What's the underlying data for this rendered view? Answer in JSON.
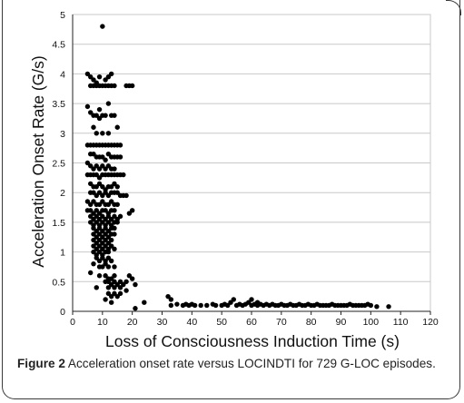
{
  "figure": {
    "label": "Figure 2",
    "caption_text": "Acceleration onset rate versus LOCINDTI for 729 G-LOC episodes."
  },
  "chart_data": {
    "type": "scatter",
    "title": "",
    "xlabel": "Loss of Consciousness Induction Time (s)",
    "ylabel": "Acceleration Onset Rate (G/s)",
    "xlim": [
      0,
      120
    ],
    "ylim": [
      0,
      5
    ],
    "x_ticks": [
      "0",
      "10",
      "20",
      "30",
      "40",
      "50",
      "60",
      "70",
      "80",
      "90",
      "100",
      "110",
      "120"
    ],
    "y_ticks": [
      "0",
      "0.5",
      "1",
      "1.5",
      "2",
      "2.5",
      "3",
      "3.5",
      "4",
      "4.5",
      "5"
    ],
    "grid": "horizontal",
    "legend": "none",
    "marker_color": "#000000",
    "points": [
      [
        10,
        4.8
      ],
      [
        5,
        4.0
      ],
      [
        6,
        3.95
      ],
      [
        7,
        3.9
      ],
      [
        8,
        3.85
      ],
      [
        9,
        3.95
      ],
      [
        11,
        3.9
      ],
      [
        12,
        3.95
      ],
      [
        13,
        4.0
      ],
      [
        6,
        3.8
      ],
      [
        7,
        3.8
      ],
      [
        8,
        3.8
      ],
      [
        9,
        3.8
      ],
      [
        10,
        3.8
      ],
      [
        11,
        3.8
      ],
      [
        12,
        3.8
      ],
      [
        13,
        3.8
      ],
      [
        14,
        3.8
      ],
      [
        18,
        3.8
      ],
      [
        19,
        3.8
      ],
      [
        20,
        3.8
      ],
      [
        5,
        3.45
      ],
      [
        6,
        3.35
      ],
      [
        7,
        3.3
      ],
      [
        8,
        3.3
      ],
      [
        9,
        3.25
      ],
      [
        7,
        3.1
      ],
      [
        8,
        3.0
      ],
      [
        9,
        3.4
      ],
      [
        10,
        3.3
      ],
      [
        11,
        3.3
      ],
      [
        12,
        3.5
      ],
      [
        13,
        3.3
      ],
      [
        14,
        3.3
      ],
      [
        15,
        3.1
      ],
      [
        10,
        3.0
      ],
      [
        12,
        3.0
      ],
      [
        5,
        2.8
      ],
      [
        6,
        2.8
      ],
      [
        7,
        2.8
      ],
      [
        8,
        2.8
      ],
      [
        9,
        2.8
      ],
      [
        10,
        2.8
      ],
      [
        11,
        2.8
      ],
      [
        12,
        2.8
      ],
      [
        13,
        2.8
      ],
      [
        14,
        2.8
      ],
      [
        15,
        2.8
      ],
      [
        16,
        2.8
      ],
      [
        6,
        2.65
      ],
      [
        7,
        2.65
      ],
      [
        8,
        2.6
      ],
      [
        9,
        2.6
      ],
      [
        10,
        2.6
      ],
      [
        11,
        2.55
      ],
      [
        12,
        2.65
      ],
      [
        13,
        2.6
      ],
      [
        14,
        2.6
      ],
      [
        15,
        2.6
      ],
      [
        16,
        2.6
      ],
      [
        5,
        2.5
      ],
      [
        6,
        2.45
      ],
      [
        7,
        2.4
      ],
      [
        8,
        2.45
      ],
      [
        9,
        2.4
      ],
      [
        10,
        2.45
      ],
      [
        11,
        2.4
      ],
      [
        12,
        2.45
      ],
      [
        13,
        2.4
      ],
      [
        14,
        2.4
      ],
      [
        5,
        2.3
      ],
      [
        6,
        2.3
      ],
      [
        7,
        2.3
      ],
      [
        8,
        2.3
      ],
      [
        9,
        2.25
      ],
      [
        10,
        2.3
      ],
      [
        11,
        2.3
      ],
      [
        12,
        2.3
      ],
      [
        13,
        2.3
      ],
      [
        14,
        2.3
      ],
      [
        15,
        2.3
      ],
      [
        16,
        2.3
      ],
      [
        17,
        2.3
      ],
      [
        6,
        2.15
      ],
      [
        7,
        2.1
      ],
      [
        8,
        2.1
      ],
      [
        9,
        2.15
      ],
      [
        10,
        2.1
      ],
      [
        11,
        2.05
      ],
      [
        12,
        2.1
      ],
      [
        13,
        2.1
      ],
      [
        14,
        2.15
      ],
      [
        15,
        2.1
      ],
      [
        6,
        2.0
      ],
      [
        7,
        2.0
      ],
      [
        8,
        1.95
      ],
      [
        9,
        2.0
      ],
      [
        10,
        1.95
      ],
      [
        11,
        2.0
      ],
      [
        12,
        1.95
      ],
      [
        13,
        2.0
      ],
      [
        14,
        2.0
      ],
      [
        15,
        2.0
      ],
      [
        16,
        1.95
      ],
      [
        17,
        1.95
      ],
      [
        18,
        1.95
      ],
      [
        5,
        1.85
      ],
      [
        6,
        1.8
      ],
      [
        7,
        1.85
      ],
      [
        8,
        1.8
      ],
      [
        9,
        1.8
      ],
      [
        10,
        1.85
      ],
      [
        11,
        1.8
      ],
      [
        12,
        1.8
      ],
      [
        13,
        1.85
      ],
      [
        14,
        1.8
      ],
      [
        15,
        1.8
      ],
      [
        5,
        1.7
      ],
      [
        6,
        1.7
      ],
      [
        7,
        1.65
      ],
      [
        8,
        1.7
      ],
      [
        9,
        1.65
      ],
      [
        10,
        1.7
      ],
      [
        11,
        1.7
      ],
      [
        12,
        1.65
      ],
      [
        13,
        1.7
      ],
      [
        14,
        1.7
      ],
      [
        20,
        1.7
      ],
      [
        19,
        1.65
      ],
      [
        6,
        1.6
      ],
      [
        7,
        1.55
      ],
      [
        8,
        1.6
      ],
      [
        9,
        1.55
      ],
      [
        10,
        1.6
      ],
      [
        11,
        1.55
      ],
      [
        12,
        1.6
      ],
      [
        13,
        1.55
      ],
      [
        14,
        1.6
      ],
      [
        15,
        1.55
      ],
      [
        16,
        1.6
      ],
      [
        6,
        1.5
      ],
      [
        7,
        1.45
      ],
      [
        8,
        1.5
      ],
      [
        9,
        1.45
      ],
      [
        10,
        1.5
      ],
      [
        11,
        1.45
      ],
      [
        12,
        1.5
      ],
      [
        13,
        1.45
      ],
      [
        14,
        1.5
      ],
      [
        15,
        1.5
      ],
      [
        7,
        1.4
      ],
      [
        8,
        1.35
      ],
      [
        9,
        1.4
      ],
      [
        10,
        1.35
      ],
      [
        11,
        1.4
      ],
      [
        12,
        1.35
      ],
      [
        13,
        1.4
      ],
      [
        14,
        1.4
      ],
      [
        7,
        1.3
      ],
      [
        8,
        1.25
      ],
      [
        9,
        1.3
      ],
      [
        10,
        1.25
      ],
      [
        11,
        1.3
      ],
      [
        12,
        1.25
      ],
      [
        13,
        1.3
      ],
      [
        14,
        1.3
      ],
      [
        7,
        1.2
      ],
      [
        8,
        1.15
      ],
      [
        9,
        1.2
      ],
      [
        10,
        1.15
      ],
      [
        11,
        1.2
      ],
      [
        12,
        1.15
      ],
      [
        13,
        1.2
      ],
      [
        7,
        1.1
      ],
      [
        8,
        1.05
      ],
      [
        9,
        1.1
      ],
      [
        10,
        1.05
      ],
      [
        11,
        1.1
      ],
      [
        12,
        1.05
      ],
      [
        13,
        1.1
      ],
      [
        14,
        1.05
      ],
      [
        7,
        1.0
      ],
      [
        8,
        0.95
      ],
      [
        9,
        1.0
      ],
      [
        10,
        0.95
      ],
      [
        11,
        1.0
      ],
      [
        12,
        1.0
      ],
      [
        8,
        0.9
      ],
      [
        9,
        0.85
      ],
      [
        10,
        0.9
      ],
      [
        11,
        0.85
      ],
      [
        12,
        0.9
      ],
      [
        13,
        0.85
      ],
      [
        9,
        0.75
      ],
      [
        10,
        0.75
      ],
      [
        11,
        0.8
      ],
      [
        12,
        0.75
      ],
      [
        14,
        0.75
      ],
      [
        7,
        0.8
      ],
      [
        6,
        0.65
      ],
      [
        9,
        0.6
      ],
      [
        11,
        0.6
      ],
      [
        12,
        0.55
      ],
      [
        13,
        0.55
      ],
      [
        14,
        0.6
      ],
      [
        19,
        0.6
      ],
      [
        20,
        0.55
      ],
      [
        11,
        0.5
      ],
      [
        12,
        0.5
      ],
      [
        13,
        0.45
      ],
      [
        14,
        0.5
      ],
      [
        15,
        0.45
      ],
      [
        16,
        0.5
      ],
      [
        17,
        0.45
      ],
      [
        18,
        0.5
      ],
      [
        21,
        0.45
      ],
      [
        8,
        0.4
      ],
      [
        12,
        0.4
      ],
      [
        14,
        0.4
      ],
      [
        16,
        0.4
      ],
      [
        18,
        0.35
      ],
      [
        12,
        0.3
      ],
      [
        13,
        0.25
      ],
      [
        14,
        0.3
      ],
      [
        16,
        0.3
      ],
      [
        11,
        0.2
      ],
      [
        13,
        0.15
      ],
      [
        15,
        0.25
      ],
      [
        21,
        0.05
      ],
      [
        24,
        0.15
      ],
      [
        32,
        0.25
      ],
      [
        33,
        0.2
      ],
      [
        33,
        0.1
      ],
      [
        35,
        0.12
      ],
      [
        37,
        0.1
      ],
      [
        38,
        0.12
      ],
      [
        39,
        0.1
      ],
      [
        40,
        0.12
      ],
      [
        41,
        0.1
      ],
      [
        43,
        0.1
      ],
      [
        45,
        0.1
      ],
      [
        47,
        0.12
      ],
      [
        48,
        0.1
      ],
      [
        50,
        0.1
      ],
      [
        51,
        0.12
      ],
      [
        52,
        0.1
      ],
      [
        53,
        0.15
      ],
      [
        54,
        0.2
      ],
      [
        55,
        0.1
      ],
      [
        56,
        0.12
      ],
      [
        57,
        0.1
      ],
      [
        58,
        0.12
      ],
      [
        59,
        0.15
      ],
      [
        60,
        0.2
      ],
      [
        60,
        0.1
      ],
      [
        61,
        0.12
      ],
      [
        62,
        0.1
      ],
      [
        62,
        0.15
      ],
      [
        63,
        0.12
      ],
      [
        64,
        0.1
      ],
      [
        65,
        0.12
      ],
      [
        66,
        0.1
      ],
      [
        67,
        0.12
      ],
      [
        68,
        0.1
      ],
      [
        69,
        0.1
      ],
      [
        70,
        0.12
      ],
      [
        71,
        0.1
      ],
      [
        72,
        0.1
      ],
      [
        73,
        0.12
      ],
      [
        74,
        0.1
      ],
      [
        75,
        0.1
      ],
      [
        76,
        0.12
      ],
      [
        77,
        0.1
      ],
      [
        78,
        0.1
      ],
      [
        79,
        0.12
      ],
      [
        80,
        0.1
      ],
      [
        81,
        0.1
      ],
      [
        82,
        0.12
      ],
      [
        83,
        0.1
      ],
      [
        84,
        0.1
      ],
      [
        85,
        0.1
      ],
      [
        86,
        0.1
      ],
      [
        87,
        0.12
      ],
      [
        88,
        0.1
      ],
      [
        89,
        0.1
      ],
      [
        90,
        0.1
      ],
      [
        91,
        0.1
      ],
      [
        92,
        0.1
      ],
      [
        93,
        0.12
      ],
      [
        94,
        0.1
      ],
      [
        95,
        0.1
      ],
      [
        96,
        0.1
      ],
      [
        97,
        0.1
      ],
      [
        98,
        0.1
      ],
      [
        99,
        0.12
      ],
      [
        100,
        0.1
      ],
      [
        102,
        0.08
      ],
      [
        106,
        0.08
      ]
    ]
  }
}
